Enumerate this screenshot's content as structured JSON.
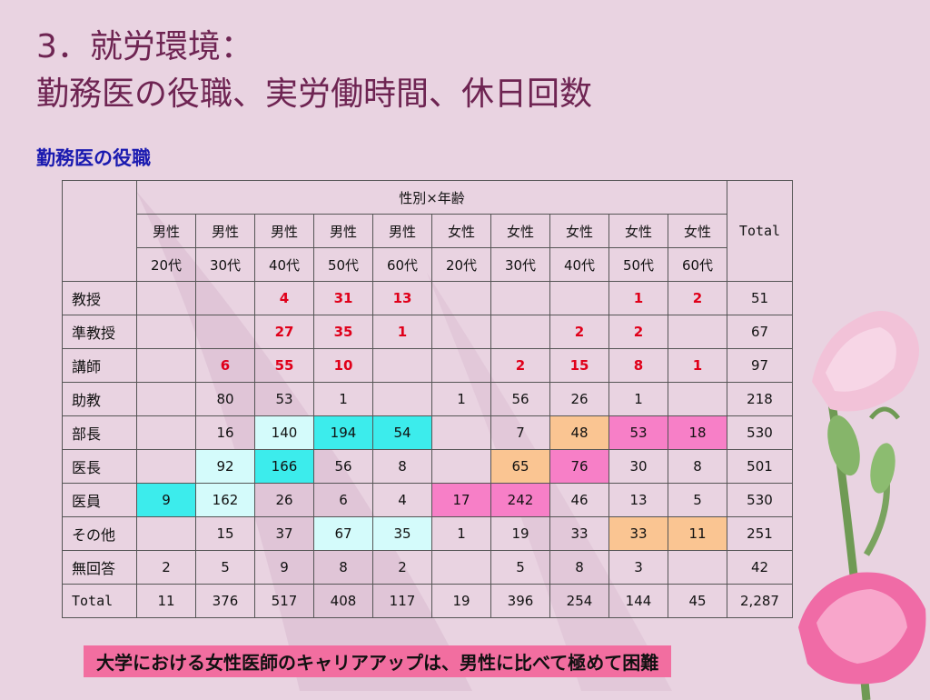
{
  "slide": {
    "title_line1": "3．就労環境：",
    "title_line2": "勤務医の役職、実労働時間、休日回数",
    "section_label": "勤務医の役職",
    "footer_banner": "大学における女性医師のキャリアアップは、男性に比べて極めて困難"
  },
  "colors": {
    "background": "#e9d3e1",
    "title": "#6e2452",
    "section_label": "#1a1ab0",
    "banner": "#f26ea0",
    "highlight_cyan": "#3cecec",
    "highlight_lightcyan": "#d4fbfb",
    "highlight_pink": "#f77fc7",
    "highlight_orange": "#fac592",
    "emphasis_number": "#e0001a"
  },
  "chart_data": {
    "type": "table",
    "title": "勤務医の役職",
    "group_header": "性別×年齢",
    "total_header": "Total",
    "columns": [
      {
        "gender": "男性",
        "age": "20代"
      },
      {
        "gender": "男性",
        "age": "30代"
      },
      {
        "gender": "男性",
        "age": "40代"
      },
      {
        "gender": "男性",
        "age": "50代"
      },
      {
        "gender": "男性",
        "age": "60代"
      },
      {
        "gender": "女性",
        "age": "20代"
      },
      {
        "gender": "女性",
        "age": "30代"
      },
      {
        "gender": "女性",
        "age": "40代"
      },
      {
        "gender": "女性",
        "age": "50代"
      },
      {
        "gender": "女性",
        "age": "60代"
      }
    ],
    "rows": [
      {
        "label": "教授",
        "values": [
          "",
          "",
          "4",
          "31",
          "13",
          "",
          "",
          "",
          "1",
          "2"
        ],
        "total": "51",
        "highlights": [
          "",
          "",
          "red",
          "red",
          "red",
          "",
          "",
          "",
          "red",
          "red"
        ]
      },
      {
        "label": "準教授",
        "values": [
          "",
          "",
          "27",
          "35",
          "1",
          "",
          "",
          "2",
          "2",
          ""
        ],
        "total": "67",
        "highlights": [
          "",
          "",
          "red",
          "red",
          "red",
          "",
          "",
          "red",
          "red",
          ""
        ]
      },
      {
        "label": "講師",
        "values": [
          "",
          "6",
          "55",
          "10",
          "",
          "",
          "2",
          "15",
          "8",
          "1"
        ],
        "total": "97",
        "highlights": [
          "",
          "red",
          "red",
          "red",
          "",
          "",
          "red",
          "red",
          "red",
          "red"
        ]
      },
      {
        "label": "助教",
        "values": [
          "",
          "80",
          "53",
          "1",
          "",
          "1",
          "56",
          "26",
          "1",
          ""
        ],
        "total": "218",
        "highlights": [
          "",
          "",
          "",
          "",
          "",
          "",
          "",
          "",
          "",
          ""
        ]
      },
      {
        "label": "部長",
        "values": [
          "",
          "16",
          "140",
          "194",
          "54",
          "",
          "7",
          "48",
          "53",
          "18"
        ],
        "total": "530",
        "highlights": [
          "",
          "",
          "lightcyan",
          "cyan",
          "cyan",
          "",
          "",
          "orange",
          "pink",
          "pink"
        ]
      },
      {
        "label": "医長",
        "values": [
          "",
          "92",
          "166",
          "56",
          "8",
          "",
          "65",
          "76",
          "30",
          "8"
        ],
        "total": "501",
        "highlights": [
          "",
          "lightcyan",
          "cyan",
          "",
          "",
          "",
          "orange",
          "pink",
          "",
          ""
        ]
      },
      {
        "label": "医員",
        "values": [
          "9",
          "162",
          "26",
          "6",
          "4",
          "17",
          "242",
          "46",
          "13",
          "5"
        ],
        "total": "530",
        "highlights": [
          "cyan",
          "lightcyan",
          "",
          "",
          "",
          "pink",
          "pink",
          "",
          "",
          ""
        ]
      },
      {
        "label": "その他",
        "values": [
          "",
          "15",
          "37",
          "67",
          "35",
          "1",
          "19",
          "33",
          "33",
          "11"
        ],
        "total": "251",
        "highlights": [
          "",
          "",
          "",
          "lightcyan",
          "lightcyan",
          "",
          "",
          "",
          "orange",
          "orange"
        ]
      },
      {
        "label": "無回答",
        "values": [
          "2",
          "5",
          "9",
          "8",
          "2",
          "",
          "5",
          "8",
          "3",
          ""
        ],
        "total": "42",
        "highlights": [
          "",
          "",
          "",
          "",
          "",
          "",
          "",
          "",
          "",
          ""
        ]
      }
    ],
    "total_row": {
      "label": "Total",
      "values": [
        "11",
        "376",
        "517",
        "408",
        "117",
        "19",
        "396",
        "254",
        "144",
        "45"
      ],
      "total": "2,287"
    }
  }
}
